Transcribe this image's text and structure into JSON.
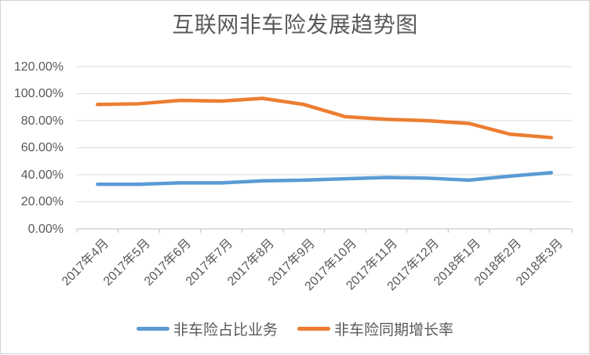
{
  "chart_data": {
    "type": "line",
    "title": "互联网非车险发展趋势图",
    "categories": [
      "2017年4月",
      "2017年5月",
      "2017年6月",
      "2017年7月",
      "2017年8月",
      "2017年9月",
      "2017年10月",
      "2017年11月",
      "2017年12月",
      "2018年1月",
      "2018年2月",
      "2018年3月"
    ],
    "series": [
      {
        "name": "非车险占比业务",
        "color": "#5B9BD5",
        "values": [
          33,
          33,
          34,
          34,
          35.5,
          36,
          37,
          38,
          37.5,
          36,
          39,
          41.5
        ]
      },
      {
        "name": "非车险同期增长率",
        "color": "#ED7D31",
        "values": [
          92,
          92.5,
          95,
          94.5,
          96.5,
          92,
          83,
          81,
          80,
          78,
          70,
          67.5
        ]
      }
    ],
    "y_axis": {
      "min": 0,
      "max": 120,
      "step": 20,
      "tick_labels": [
        "0.00%",
        "20.00%",
        "40.00%",
        "60.00%",
        "80.00%",
        "100.00%",
        "120.00%"
      ],
      "format": "percent"
    },
    "xlabel": "",
    "ylabel": "",
    "grid": true,
    "legend_position": "bottom",
    "colors": {
      "gridline": "#D9D9D9",
      "axis_line": "#BFBFBF",
      "text": "#595959",
      "frame_border": "#D3D3D3",
      "background": "#FFFFFF"
    }
  }
}
